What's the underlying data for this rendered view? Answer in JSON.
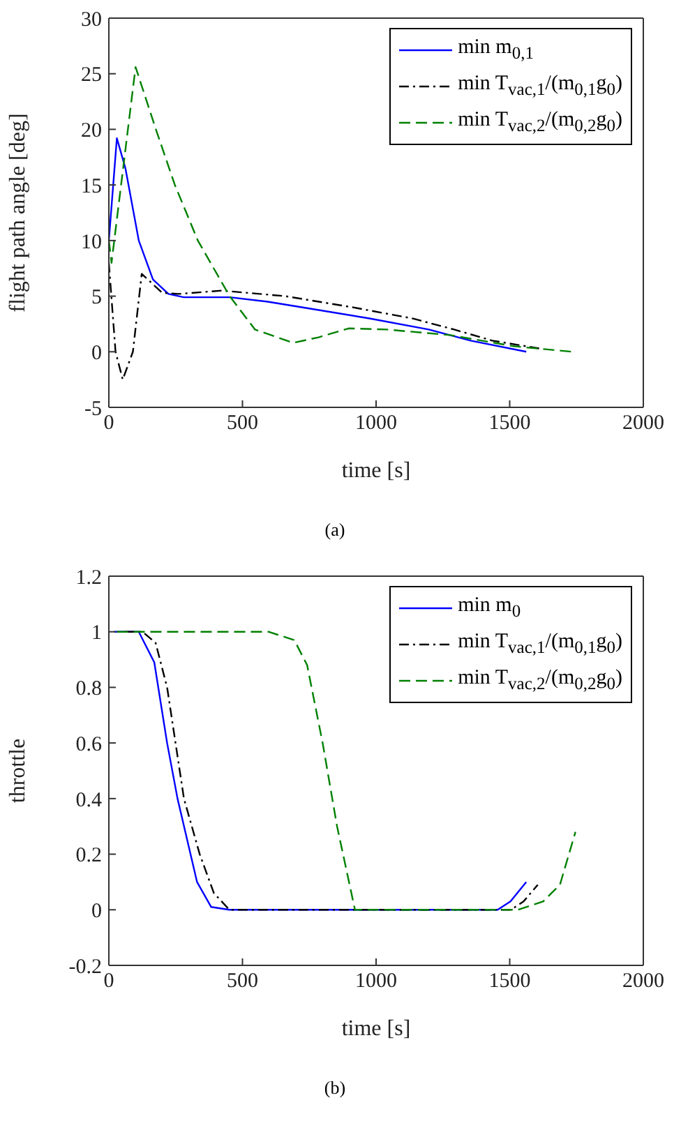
{
  "chart_data": [
    {
      "type": "line",
      "xlabel": "time [s]",
      "ylabel": "flight path angle [deg]",
      "xlim": [
        0,
        2000
      ],
      "xticks": [
        0,
        500,
        1000,
        1500,
        2000
      ],
      "ylim": [
        -5,
        30
      ],
      "yticks": [
        -5,
        0,
        5,
        10,
        15,
        20,
        25,
        30
      ],
      "legend": "top right",
      "grid": false,
      "annotations": [
        "(a)"
      ],
      "series": [
        {
          "name": "min m$_{0,1}$",
          "color": "#0000ff",
          "line_style": "solid",
          "x": [
            0,
            30,
            62,
            112,
            165,
            223,
            280,
            452,
            594,
            722,
            975,
            1197,
            1354,
            1562
          ],
          "values": [
            10,
            19.2,
            16.5,
            10,
            6.5,
            5.2,
            4.9,
            4.9,
            4.5,
            4.0,
            3.0,
            2.0,
            1.0,
            0
          ]
        },
        {
          "name": "min T$_{vac,1}$/(m$_{0,1}$g$_{0}$)",
          "color": "#000000",
          "line_style": "dashdot",
          "x": [
            0,
            25,
            52,
            90,
            123,
            200,
            262,
            422,
            660,
            912,
            1135,
            1292,
            1435,
            1610
          ],
          "values": [
            8,
            0,
            -2.5,
            0,
            7,
            5.3,
            5.2,
            5.5,
            5.0,
            4.0,
            3.0,
            2.0,
            1.0,
            0.3
          ]
        },
        {
          "name": "min T$_{vac,2}$/(m$_{0,2}$g$_{0}$)",
          "color": "#008000",
          "line_style": "dashed",
          "x": [
            0,
            10,
            100,
            176,
            247,
            333,
            452,
            547,
            690,
            785,
            897,
            1040,
            1277,
            1514,
            1735
          ],
          "values": [
            10,
            8,
            25.6,
            20,
            15,
            10,
            5,
            2,
            0.8,
            1.3,
            2.1,
            2.0,
            1.5,
            0.5,
            0
          ]
        }
      ]
    },
    {
      "type": "line",
      "xlabel": "time [s]",
      "ylabel": "throttle",
      "xlim": [
        0,
        2000
      ],
      "xticks": [
        0,
        500,
        1000,
        1500,
        2000
      ],
      "ylim": [
        -0.2,
        1.2
      ],
      "yticks": [
        -0.2,
        0,
        0.2,
        0.4,
        0.6,
        0.8,
        1,
        1.2
      ],
      "legend": "top right",
      "grid": false,
      "annotations": [
        "(b)"
      ],
      "series": [
        {
          "name": "min m$_{0}$",
          "color": "#0000ff",
          "line_style": "solid",
          "x": [
            20,
            112,
            170,
            218,
            257,
            330,
            383,
            451,
            1455,
            1503,
            1562
          ],
          "values": [
            1,
            1,
            0.89,
            0.6,
            0.4,
            0.1,
            0.01,
            0,
            0,
            0.03,
            0.1
          ]
        },
        {
          "name": "min T$_{vac,1}$/(m$_{0,1}$g$_{0}$)",
          "color": "#000000",
          "line_style": "dashdot",
          "x": [
            60,
            126,
            175,
            218,
            281,
            340,
            393,
            451,
            1505,
            1552,
            1605
          ],
          "values": [
            1,
            1,
            0.96,
            0.8,
            0.4,
            0.2,
            0.06,
            0,
            0,
            0.03,
            0.09
          ]
        },
        {
          "name": "min T$_{vac,2}$/(m$_{0,2}$g$_{0}$)",
          "color": "#008000",
          "line_style": "dashed",
          "x": [
            30,
            597,
            694,
            742,
            800,
            854,
            921,
            1530,
            1625,
            1688,
            1746
          ],
          "values": [
            1,
            1,
            0.97,
            0.88,
            0.6,
            0.3,
            0,
            0,
            0.03,
            0.09,
            0.28
          ]
        }
      ]
    }
  ]
}
